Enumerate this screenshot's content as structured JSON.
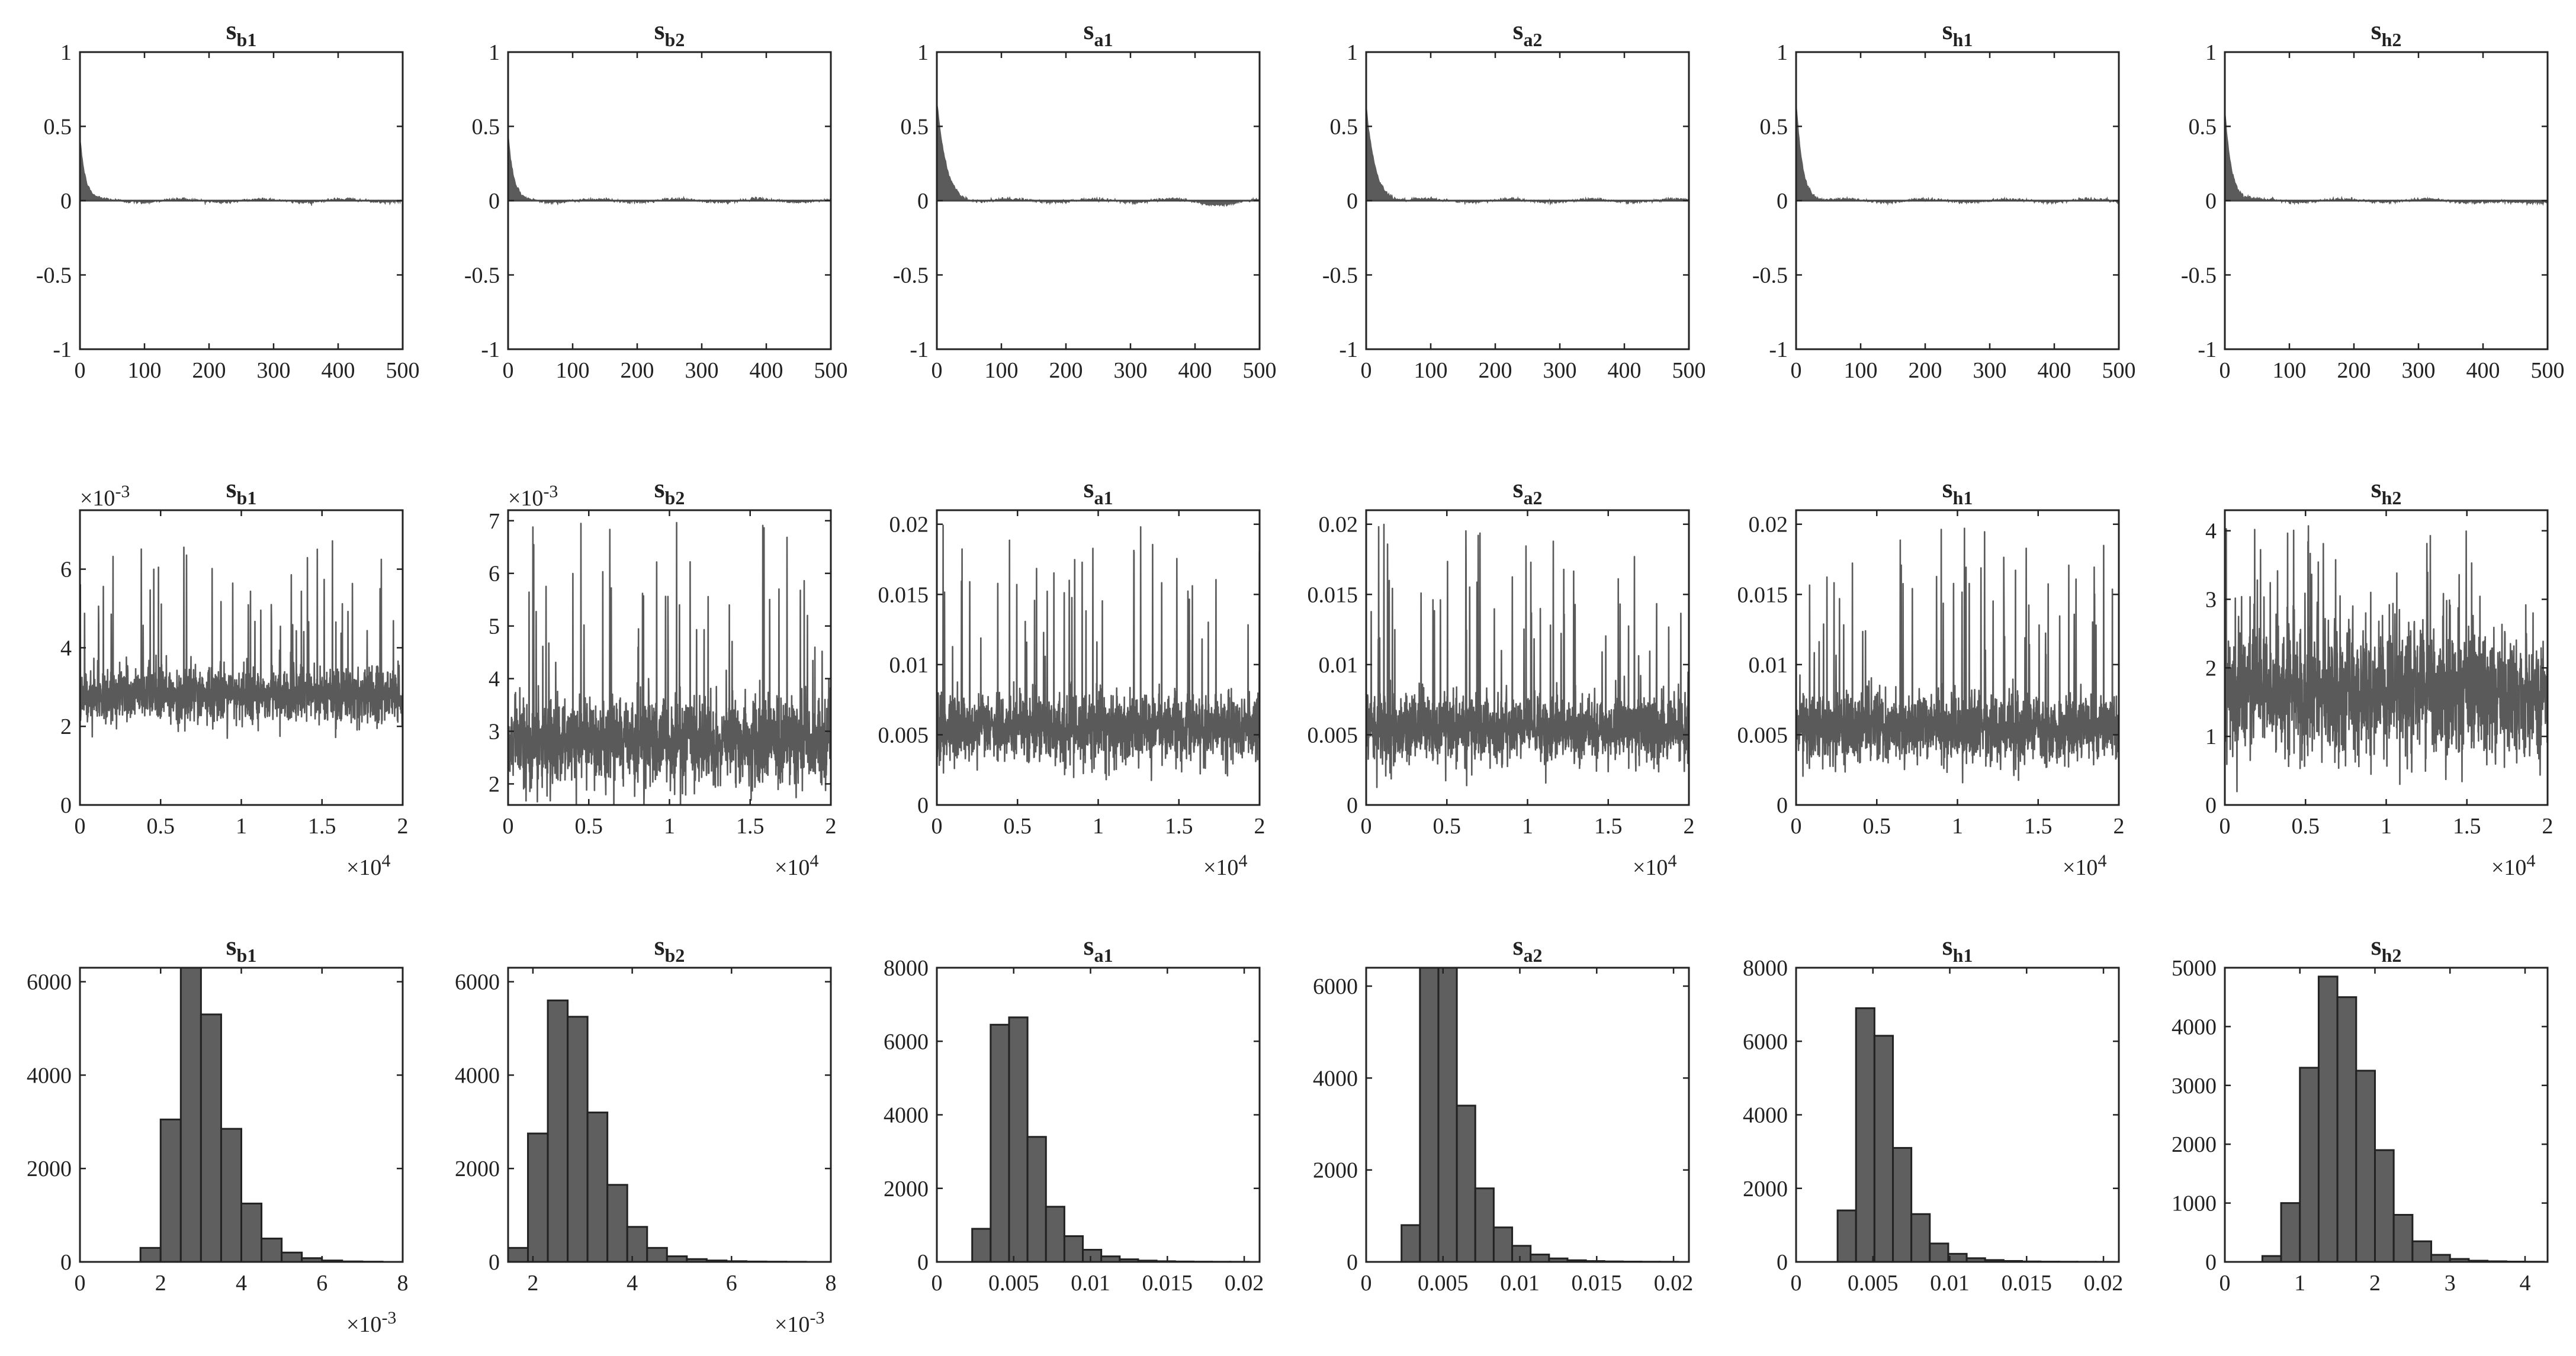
{
  "chart_data": [
    {
      "type": "bar",
      "kind": "autocorrelation",
      "title": "s",
      "title_sub": "b1",
      "ylim": [
        -1,
        1
      ],
      "xlim": [
        0,
        500
      ],
      "yticks": [
        "-1",
        "-0.5",
        "0",
        "0.5",
        "1"
      ],
      "xticks": [
        "0",
        "100",
        "200",
        "300",
        "400",
        "500"
      ],
      "start": 0.45,
      "decay": 8
    },
    {
      "type": "bar",
      "kind": "autocorrelation",
      "title": "s",
      "title_sub": "b2",
      "ylim": [
        -1,
        1
      ],
      "xlim": [
        0,
        500
      ],
      "yticks": [
        "-1",
        "-0.5",
        "0",
        "0.5",
        "1"
      ],
      "xticks": [
        "0",
        "100",
        "200",
        "300",
        "400",
        "500"
      ],
      "start": 0.45,
      "decay": 8
    },
    {
      "type": "bar",
      "kind": "autocorrelation",
      "title": "s",
      "title_sub": "a1",
      "ylim": [
        -1,
        1
      ],
      "xlim": [
        0,
        500
      ],
      "yticks": [
        "-1",
        "-0.5",
        "0",
        "0.5",
        "1"
      ],
      "xticks": [
        "0",
        "100",
        "200",
        "300",
        "400",
        "500"
      ],
      "start": 0.68,
      "decay": 14
    },
    {
      "type": "bar",
      "kind": "autocorrelation",
      "title": "s",
      "title_sub": "a2",
      "ylim": [
        -1,
        1
      ],
      "xlim": [
        0,
        500
      ],
      "yticks": [
        "-1",
        "-0.5",
        "0",
        "0.5",
        "1"
      ],
      "xticks": [
        "0",
        "100",
        "200",
        "300",
        "400",
        "500"
      ],
      "start": 0.65,
      "decay": 14
    },
    {
      "type": "bar",
      "kind": "autocorrelation",
      "title": "s",
      "title_sub": "h1",
      "ylim": [
        -1,
        1
      ],
      "xlim": [
        0,
        500
      ],
      "yticks": [
        "-1",
        "-0.5",
        "0",
        "0.5",
        "1"
      ],
      "xticks": [
        "0",
        "100",
        "200",
        "300",
        "400",
        "500"
      ],
      "start": 0.7,
      "decay": 10
    },
    {
      "type": "bar",
      "kind": "autocorrelation",
      "title": "s",
      "title_sub": "h2",
      "ylim": [
        -1,
        1
      ],
      "xlim": [
        0,
        500
      ],
      "yticks": [
        "-1",
        "-0.5",
        "0",
        "0.5",
        "1"
      ],
      "xticks": [
        "0",
        "100",
        "200",
        "300",
        "400",
        "500"
      ],
      "start": 0.65,
      "decay": 10
    },
    {
      "type": "line",
      "kind": "trace",
      "title": "s",
      "title_sub": "b1",
      "ylim": [
        0,
        0.0075
      ],
      "xlim": [
        0,
        20000
      ],
      "yticks": [
        "0",
        "2",
        "4",
        "6"
      ],
      "yexp": "×10",
      "yexp_sup": "-3",
      "xticks": [
        "0",
        "0.5",
        "1",
        "1.5",
        "2"
      ],
      "xexp": "×10",
      "xexp_sup": "4",
      "center": 0.0028,
      "spread": 0.00035,
      "spike_max": 0.0068
    },
    {
      "type": "line",
      "kind": "trace",
      "title": "s",
      "title_sub": "b2",
      "ylim": [
        0.0016,
        0.0072
      ],
      "xlim": [
        0,
        20000
      ],
      "yticks": [
        "2",
        "3",
        "4",
        "5",
        "6",
        "7"
      ],
      "yexp": "×10",
      "yexp_sup": "-3",
      "xticks": [
        "0",
        "0.5",
        "1",
        "1.5",
        "2"
      ],
      "xexp": "×10",
      "xexp_sup": "4",
      "center": 0.0028,
      "spread": 0.0004,
      "spike_max": 0.0071
    },
    {
      "type": "line",
      "kind": "trace",
      "title": "s",
      "title_sub": "a1",
      "ylim": [
        0,
        0.021
      ],
      "xlim": [
        0,
        20000
      ],
      "yticks": [
        "0",
        "0.005",
        "0.01",
        "0.015",
        "0.02"
      ],
      "xticks": [
        "0",
        "0.5",
        "1",
        "1.5",
        "2"
      ],
      "xexp": "×10",
      "xexp_sup": "4",
      "center": 0.0055,
      "spread": 0.0012,
      "spike_max": 0.02
    },
    {
      "type": "line",
      "kind": "trace",
      "title": "s",
      "title_sub": "a2",
      "ylim": [
        0,
        0.021
      ],
      "xlim": [
        0,
        20000
      ],
      "yticks": [
        "0",
        "0.005",
        "0.01",
        "0.015",
        "0.02"
      ],
      "xticks": [
        "0",
        "0.5",
        "1",
        "1.5",
        "2"
      ],
      "xexp": "×10",
      "xexp_sup": "4",
      "center": 0.0055,
      "spread": 0.0012,
      "spike_max": 0.02
    },
    {
      "type": "line",
      "kind": "trace",
      "title": "s",
      "title_sub": "h1",
      "ylim": [
        0,
        0.021
      ],
      "xlim": [
        0,
        20000
      ],
      "yticks": [
        "0",
        "0.005",
        "0.01",
        "0.015",
        "0.02"
      ],
      "xticks": [
        "0",
        "0.5",
        "1",
        "1.5",
        "2"
      ],
      "xexp": "×10",
      "xexp_sup": "4",
      "center": 0.0055,
      "spread": 0.0012,
      "spike_max": 0.02
    },
    {
      "type": "line",
      "kind": "trace",
      "title": "s",
      "title_sub": "h2",
      "ylim": [
        0,
        4.3
      ],
      "xlim": [
        0,
        20000
      ],
      "yticks": [
        "0",
        "1",
        "2",
        "3",
        "4"
      ],
      "xticks": [
        "0",
        "0.5",
        "1",
        "1.5",
        "2"
      ],
      "xexp": "×10",
      "xexp_sup": "4",
      "center": 1.65,
      "spread": 0.45,
      "spike_max": 4.1
    },
    {
      "type": "bar",
      "kind": "histogram",
      "title": "s",
      "title_sub": "b1",
      "xlim": [
        0,
        0.008
      ],
      "ylim": [
        0,
        6300
      ],
      "xticks": [
        "0",
        "2",
        "4",
        "6",
        "8"
      ],
      "xexp": "×10",
      "xexp_sup": "-3",
      "yticks": [
        "0",
        "2000",
        "4000",
        "6000"
      ],
      "bin_edges": [
        0.0015,
        0.002,
        0.0025,
        0.003,
        0.0035,
        0.004,
        0.0045,
        0.005,
        0.0055,
        0.006,
        0.0065,
        0.007,
        0.0075
      ],
      "values": [
        300,
        3050,
        6300,
        5300,
        2850,
        1250,
        500,
        200,
        80,
        30,
        10,
        5
      ]
    },
    {
      "type": "bar",
      "kind": "histogram",
      "title": "s",
      "title_sub": "b2",
      "xlim": [
        0.0015,
        0.008
      ],
      "ylim": [
        0,
        6300
      ],
      "xticks": [
        "2",
        "4",
        "6",
        "8"
      ],
      "xexp": "×10",
      "xexp_sup": "-3",
      "yticks": [
        "0",
        "2000",
        "4000",
        "6000"
      ],
      "bin_edges": [
        0.0015,
        0.0019,
        0.0023,
        0.0027,
        0.0031,
        0.0035,
        0.0039,
        0.0043,
        0.0047,
        0.0051,
        0.0055,
        0.0059,
        0.0063,
        0.0067,
        0.0071,
        0.0075
      ],
      "values": [
        300,
        2750,
        5600,
        5250,
        3200,
        1650,
        750,
        300,
        120,
        60,
        30,
        15,
        8,
        5,
        3
      ]
    },
    {
      "type": "bar",
      "kind": "histogram",
      "title": "s",
      "title_sub": "a1",
      "xlim": [
        0,
        0.021
      ],
      "ylim": [
        0,
        8000
      ],
      "xticks": [
        "0",
        "0.005",
        "0.01",
        "0.015",
        "0.02"
      ],
      "yticks": [
        "0",
        "2000",
        "4000",
        "6000",
        "8000"
      ],
      "bin_edges": [
        0.0023,
        0.0035,
        0.0047,
        0.0059,
        0.0071,
        0.0083,
        0.0095,
        0.0107,
        0.0119,
        0.0131,
        0.0143,
        0.0155,
        0.0167,
        0.0179,
        0.0191,
        0.0203
      ],
      "values": [
        900,
        6450,
        6650,
        3400,
        1500,
        700,
        330,
        150,
        70,
        35,
        18,
        10,
        6,
        4,
        3
      ]
    },
    {
      "type": "bar",
      "kind": "histogram",
      "title": "s",
      "title_sub": "a2",
      "xlim": [
        0,
        0.021
      ],
      "ylim": [
        0,
        6400
      ],
      "xticks": [
        "0",
        "0.005",
        "0.01",
        "0.015",
        "0.02"
      ],
      "yticks": [
        "0",
        "2000",
        "4000",
        "6000"
      ],
      "bin_edges": [
        0.0023,
        0.0035,
        0.0047,
        0.0059,
        0.0071,
        0.0083,
        0.0095,
        0.0107,
        0.0119,
        0.0131,
        0.0143,
        0.0155,
        0.0167,
        0.0179,
        0.0191,
        0.0203
      ],
      "values": [
        800,
        6400,
        6400,
        3400,
        1600,
        750,
        350,
        160,
        75,
        35,
        18,
        10,
        6,
        4,
        3
      ]
    },
    {
      "type": "bar",
      "kind": "histogram",
      "title": "s",
      "title_sub": "h1",
      "xlim": [
        0,
        0.021
      ],
      "ylim": [
        0,
        8000
      ],
      "xticks": [
        "0",
        "0.005",
        "0.01",
        "0.015",
        "0.02"
      ],
      "yticks": [
        "0",
        "2000",
        "4000",
        "6000",
        "8000"
      ],
      "bin_edges": [
        0.0027,
        0.0039,
        0.0051,
        0.0063,
        0.0075,
        0.0087,
        0.0099,
        0.0111,
        0.0123,
        0.0135,
        0.0147,
        0.0159,
        0.0171,
        0.0183,
        0.0195,
        0.0207
      ],
      "values": [
        1400,
        6900,
        6150,
        3100,
        1300,
        500,
        220,
        100,
        50,
        25,
        12,
        7,
        5,
        3,
        2
      ]
    },
    {
      "type": "bar",
      "kind": "histogram",
      "title": "s",
      "title_sub": "h2",
      "xlim": [
        0,
        4.3
      ],
      "ylim": [
        0,
        5000
      ],
      "xticks": [
        "0",
        "1",
        "2",
        "3",
        "4"
      ],
      "yticks": [
        "0",
        "1000",
        "2000",
        "3000",
        "4000",
        "5000"
      ],
      "bin_edges": [
        0.5,
        0.75,
        1.0,
        1.25,
        1.5,
        1.75,
        2.0,
        2.25,
        2.5,
        2.75,
        3.0,
        3.25,
        3.5,
        3.75,
        4.0,
        4.25
      ],
      "values": [
        100,
        1000,
        3300,
        4850,
        4500,
        3250,
        1900,
        800,
        350,
        120,
        50,
        20,
        10,
        5,
        3
      ]
    }
  ]
}
